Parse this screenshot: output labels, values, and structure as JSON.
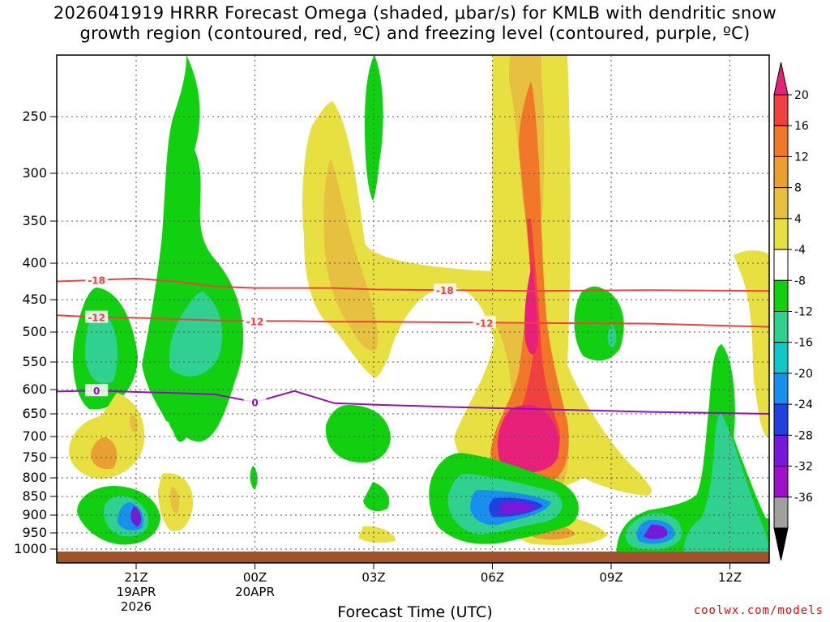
{
  "title": {
    "line1": "2026041919 HRRR Forecast Omega (shaded, μbar/s) for KMLB with dendritic snow",
    "line2": "growth region (contoured, red, ºC) and freezing level (contoured, purple, ºC)"
  },
  "xlabel": "Forecast Time (UTC)",
  "credit": "coolwx.com/models",
  "chart_data": {
    "type": "heatmap",
    "yaxis": {
      "scale": "pressure (inverted)",
      "ticks": [
        "250",
        "300",
        "350",
        "400",
        "450",
        "500",
        "550",
        "600",
        "650",
        "700",
        "750",
        "800",
        "850",
        "900",
        "950",
        "1000"
      ],
      "range": [
        200,
        1020
      ]
    },
    "xaxis": {
      "ticks": [
        {
          "label": "21Z",
          "sub": [
            "19APR",
            "2026"
          ]
        },
        {
          "label": "00Z",
          "sub": [
            "20APR"
          ]
        },
        {
          "label": "03Z",
          "sub": []
        },
        {
          "label": "06Z",
          "sub": []
        },
        {
          "label": "09Z",
          "sub": []
        },
        {
          "label": "12Z",
          "sub": []
        }
      ],
      "range_hours": [
        -2,
        16
      ]
    },
    "colorbar": {
      "ticks": [
        "20",
        "16",
        "12",
        "8",
        "4",
        "-4",
        "-8",
        "-12",
        "-16",
        "-20",
        "-24",
        "-28",
        "-32",
        "-36"
      ],
      "colors": [
        "#e8207a",
        "#f04040",
        "#f07828",
        "#e8a030",
        "#e8c040",
        "#e8e040",
        "#ffffff",
        "#10d010",
        "#30d090",
        "#10c8c8",
        "#1890f0",
        "#2040e0",
        "#7818d8",
        "#a010c8",
        "#a0a0a0",
        "#000000"
      ]
    },
    "contours": [
      {
        "name": "-18",
        "color": "#f04040",
        "pressure": [
          425,
          423,
          421,
          425,
          432,
          434,
          434,
          434,
          436,
          437,
          438,
          437,
          438
        ],
        "label_positions_hours": [
          -1.0,
          7.8
        ]
      },
      {
        "name": "-12",
        "color": "#f04040",
        "pressure": [
          474,
          477,
          478,
          480,
          482,
          483,
          483,
          484,
          484,
          485,
          486,
          487,
          492
        ],
        "label_positions_hours": [
          -1.0,
          3.0,
          8.8
        ]
      },
      {
        "name": "0",
        "color": "#9010c0",
        "pressure": [
          604,
          602,
          605,
          607,
          610,
          626,
          603,
          628,
          631,
          636,
          640,
          646,
          650
        ],
        "label_positions_hours": [
          -1.0,
          3.0
        ]
      }
    ],
    "contour_hours": [
      -2,
      -1,
      0,
      1,
      2,
      3,
      4,
      5,
      6,
      8,
      10,
      13,
      16
    ]
  }
}
